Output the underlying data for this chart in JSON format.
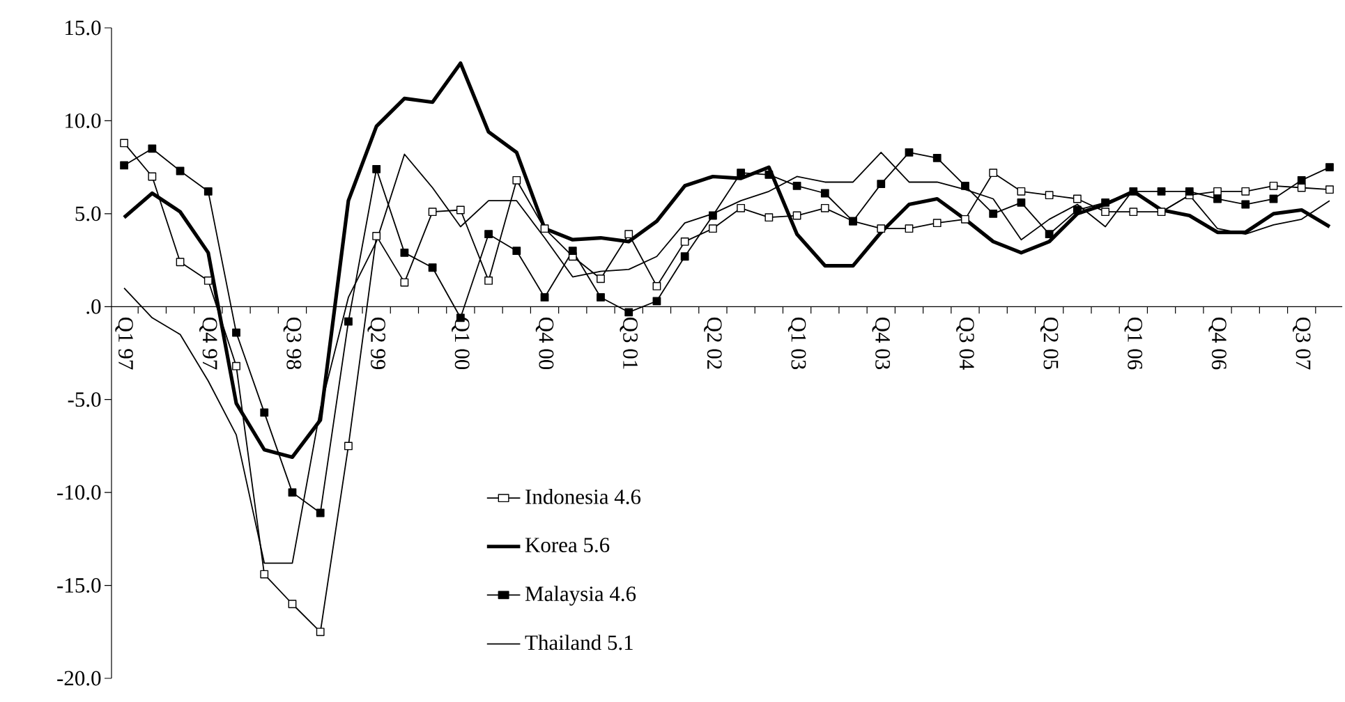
{
  "chart_data": {
    "type": "line",
    "categories": [
      "Q1 97",
      null,
      null,
      "Q4 97",
      null,
      null,
      "Q3 98",
      null,
      null,
      "Q2 99",
      null,
      null,
      "Q1 00",
      null,
      null,
      "Q4 00",
      null,
      null,
      "Q3 01",
      null,
      null,
      "Q2 02",
      null,
      null,
      "Q1 03",
      null,
      null,
      "Q4 03",
      null,
      null,
      "Q3 04",
      null,
      null,
      "Q2 05",
      null,
      null,
      "Q1 06",
      null,
      null,
      "Q4 06",
      null,
      null,
      "Q3 07",
      null
    ],
    "series": [
      {
        "name": "Indonesia 4.6",
        "color": "#000000",
        "marker": "square",
        "values": [
          8.8,
          7.0,
          2.4,
          1.4,
          -3.2,
          -14.4,
          -16.0,
          -17.5,
          -7.5,
          3.8,
          1.3,
          5.1,
          5.2,
          1.4,
          6.8,
          4.2,
          2.7,
          1.5,
          3.9,
          1.1,
          3.5,
          4.2,
          5.3,
          4.8,
          4.9,
          5.3,
          4.6,
          4.2,
          4.2,
          4.5,
          4.7,
          7.2,
          6.2,
          6.0,
          5.8,
          5.1,
          5.1,
          5.1,
          6.0,
          6.2,
          6.2,
          6.5,
          6.4,
          6.3
        ]
      },
      {
        "name": "Korea 5.6",
        "color": "#000000",
        "marker": "none",
        "values": [
          4.8,
          6.1,
          5.1,
          2.9,
          -5.2,
          -7.7,
          -8.1,
          -6.1,
          5.7,
          9.7,
          11.2,
          11.0,
          13.1,
          9.4,
          8.3,
          4.2,
          3.6,
          3.7,
          3.5,
          4.6,
          6.5,
          7.0,
          6.9,
          7.5,
          3.9,
          2.2,
          2.2,
          4.0,
          5.5,
          5.8,
          4.7,
          3.5,
          2.9,
          3.5,
          5.0,
          5.5,
          6.2,
          5.2,
          4.9,
          4.0,
          4.0,
          5.0,
          5.2,
          4.3
        ]
      },
      {
        "name": "Malaysia 4.6",
        "color": "#000000",
        "marker": "square",
        "values": [
          7.6,
          8.5,
          7.3,
          6.2,
          -1.4,
          -5.7,
          -10.0,
          -11.1,
          -0.8,
          7.4,
          2.9,
          2.1,
          -0.6,
          3.9,
          3.0,
          0.5,
          3.0,
          0.5,
          -0.3,
          0.3,
          2.7,
          4.9,
          7.2,
          7.1,
          6.5,
          6.1,
          4.6,
          6.6,
          8.3,
          8.0,
          6.5,
          5.0,
          5.6,
          3.9,
          5.2,
          5.6,
          6.2,
          6.2,
          6.2,
          5.8,
          5.5,
          5.8,
          6.8,
          7.5
        ]
      },
      {
        "name": "Thailand 5.1",
        "color": "#000000",
        "marker": "none",
        "values": [
          1.0,
          -0.6,
          -1.5,
          -4.0,
          -6.9,
          -13.8,
          -13.8,
          -5.5,
          0.5,
          3.5,
          8.2,
          6.4,
          4.3,
          5.7,
          5.7,
          3.7,
          1.6,
          1.9,
          2.0,
          2.7,
          4.5,
          5.0,
          5.7,
          6.2,
          7.0,
          6.7,
          6.7,
          8.3,
          6.7,
          6.7,
          6.3,
          5.8,
          3.6,
          4.7,
          5.5,
          4.3,
          6.3,
          5.1,
          6.0,
          4.2,
          3.9,
          4.4,
          4.7,
          5.7
        ]
      }
    ],
    "ylim": [
      -20,
      15
    ],
    "yticks": [
      {
        "value": -20,
        "label": "-20.0"
      },
      {
        "value": -15,
        "label": "-15.0"
      },
      {
        "value": -10,
        "label": "-10.0"
      },
      {
        "value": -5,
        "label": "-5.0"
      },
      {
        "value": 0,
        "label": ".0"
      },
      {
        "value": 5,
        "label": "5.0"
      },
      {
        "value": 10,
        "label": "10.0"
      },
      {
        "value": 15,
        "label": "15.0"
      }
    ],
    "grid": false,
    "legend": "bottom"
  }
}
